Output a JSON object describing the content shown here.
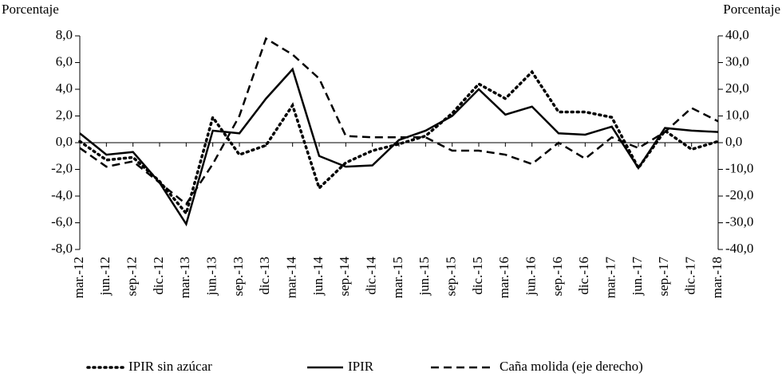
{
  "chart_data": {
    "type": "line",
    "ylabel": "Porcentaje",
    "y2label": "Porcentaje",
    "categories": [
      "mar.-12",
      "jun.-12",
      "sep.-12",
      "dic.-12",
      "mar.-13",
      "jun.-13",
      "sep.-13",
      "dic.-13",
      "mar.-14",
      "jun.-14",
      "sep.-14",
      "dic.-14",
      "mar.-15",
      "jun.-15",
      "sep.-15",
      "dic.-15",
      "mar.-16",
      "jun.-16",
      "sep.-16",
      "dic.-16",
      "mar.-17",
      "jun.-17",
      "sep.-17",
      "dic.-17",
      "mar.-18"
    ],
    "series": [
      {
        "name": "IPIR sin azúcar",
        "color": "#000000",
        "line_style": "dotted",
        "values": [
          0.1,
          -1.3,
          -1.1,
          -2.9,
          -5.3,
          1.9,
          -0.9,
          -0.2,
          2.8,
          -3.4,
          -1.5,
          -0.6,
          -0.1,
          0.5,
          2.2,
          4.4,
          3.3,
          5.3,
          2.3,
          2.3,
          1.9,
          -1.9,
          0.9,
          -0.5,
          0.1
        ]
      },
      {
        "name": "IPIR",
        "color": "#000000",
        "line_style": "solid",
        "values": [
          0.7,
          -0.9,
          -0.7,
          -3.0,
          -6.1,
          0.9,
          0.7,
          3.3,
          5.5,
          -1.0,
          -1.8,
          -1.7,
          0.2,
          0.9,
          2.0,
          4.0,
          2.1,
          2.7,
          0.7,
          0.6,
          1.2,
          -1.9,
          1.1,
          0.9,
          0.8
        ]
      },
      {
        "name": "Caña molida (eje derecho)",
        "color": "#000000",
        "line_style": "dashed",
        "axis": "y2",
        "values": [
          -2,
          -9,
          -7,
          -15,
          -23,
          -8,
          10,
          39,
          33,
          24,
          2.5,
          2,
          2,
          2,
          -3,
          -3,
          -4.5,
          -8,
          0,
          -6,
          2,
          -2,
          4,
          13,
          8
        ]
      }
    ],
    "ylim": [
      -8,
      8
    ],
    "yticks": [
      {
        "value": -8,
        "label": "-8,0"
      },
      {
        "value": -6,
        "label": "-6,0"
      },
      {
        "value": -4,
        "label": "-4,0"
      },
      {
        "value": -2,
        "label": "-2,0"
      },
      {
        "value": 0,
        "label": "0,0"
      },
      {
        "value": 2,
        "label": "2,0"
      },
      {
        "value": 4,
        "label": "4,0"
      },
      {
        "value": 6,
        "label": "6,0"
      },
      {
        "value": 8,
        "label": "8,0"
      }
    ],
    "y2lim": [
      -40,
      40
    ],
    "y2ticks": [
      {
        "value": -40,
        "label": "-40,0"
      },
      {
        "value": -30,
        "label": "-30,0"
      },
      {
        "value": -20,
        "label": "-20,0"
      },
      {
        "value": -10,
        "label": "-10,0"
      },
      {
        "value": 0,
        "label": "0,0"
      },
      {
        "value": 10,
        "label": "10,0"
      },
      {
        "value": 20,
        "label": "20,0"
      },
      {
        "value": 30,
        "label": "30,0"
      },
      {
        "value": 40,
        "label": "40,0"
      }
    ],
    "legend": "bottom"
  }
}
